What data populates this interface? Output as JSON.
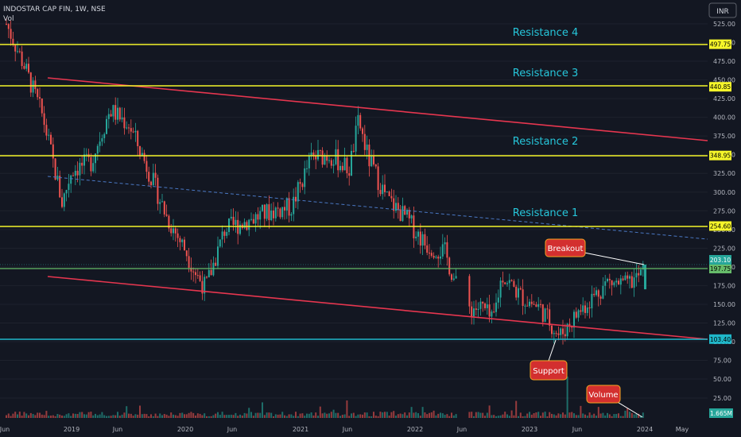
{
  "header": {
    "symbol": "INDOSTAR CAP FIN, 1W, NSE",
    "volume_label": "Vol"
  },
  "currency": "INR",
  "colors": {
    "bg": "#131722",
    "up": "#26a69a",
    "down": "#ef5350",
    "hline": "#f5f52a",
    "support_line": "#1fb7c9",
    "trend": "#e6364f",
    "breakout_line": "#66bb6a",
    "callout": "#d32f2f",
    "callout_border": "#f5a623",
    "text": "#b2b5be",
    "res_text": "#26c6da"
  },
  "annotations": {
    "resistance4": "Resistance 4",
    "resistance3": "Resistance 3",
    "resistance2": "Resistance 2",
    "resistance1": "Resistance 1",
    "breakout": "Breakout",
    "support": "Support",
    "volume": "Volume"
  },
  "chart_data": {
    "type": "candlestick",
    "y_range": [
      50,
      538
    ],
    "y_ticks": [
      "525.00",
      "500.00",
      "475.00",
      "450.00",
      "425.00",
      "400.00",
      "375.00",
      "350.00",
      "325.00",
      "300.00",
      "275.00",
      "250.00",
      "225.00",
      "200.00",
      "175.00",
      "150.00",
      "125.00",
      "100.00",
      "75.00",
      "50.00",
      "25.00"
    ],
    "x_ticks": [
      "Jun",
      "2019",
      "Jun",
      "2020",
      "Jun",
      "2021",
      "Jun",
      "2022",
      "Jun",
      "2023",
      "Jun",
      "2024",
      "May"
    ],
    "horizontal_levels": [
      {
        "name": "Resistance 4",
        "value": 497.75,
        "label": "497.75"
      },
      {
        "name": "Resistance 3",
        "value": 440.85,
        "label": "440.85"
      },
      {
        "name": "Resistance 2",
        "value": 348.95,
        "label": "348.95"
      },
      {
        "name": "Resistance 1",
        "value": 254.6,
        "label": "254.60"
      },
      {
        "name": "Breakout level",
        "value": 197.75,
        "label": "197.75"
      },
      {
        "name": "Support",
        "value": 103.4,
        "label": "103.40"
      }
    ],
    "last_price": {
      "value": 203.1,
      "label": "203.10"
    },
    "volume_last": "1.665M",
    "volume_axis_ticks": [
      "50.00",
      "25.00"
    ],
    "close_path": [
      [
        "2018-06",
        530
      ],
      [
        "2018-08",
        470
      ],
      [
        "2018-10",
        400
      ],
      [
        "2018-12",
        285
      ],
      [
        "2019-01",
        330
      ],
      [
        "2019-03",
        340
      ],
      [
        "2019-05",
        410
      ],
      [
        "2019-07",
        390
      ],
      [
        "2019-09",
        330
      ],
      [
        "2019-11",
        265
      ],
      [
        "2020-01",
        220
      ],
      [
        "2020-02",
        190
      ],
      [
        "2020-03",
        172
      ],
      [
        "2020-05",
        250
      ],
      [
        "2020-08",
        265
      ],
      [
        "2020-10",
        275
      ],
      [
        "2020-12",
        280
      ],
      [
        "2021-02",
        345
      ],
      [
        "2021-04",
        350
      ],
      [
        "2021-06",
        330
      ],
      [
        "2021-07",
        395
      ],
      [
        "2021-08",
        345
      ],
      [
        "2021-10",
        290
      ],
      [
        "2021-12",
        265
      ],
      [
        "2022-02",
        230
      ],
      [
        "2022-04",
        220
      ],
      [
        "2022-06",
        145
      ],
      [
        "2022-08",
        145
      ],
      [
        "2022-09",
        125
      ],
      [
        "2022-10",
        190
      ],
      [
        "2022-12",
        160
      ],
      [
        "2023-02",
        145
      ],
      [
        "2023-04",
        107
      ],
      [
        "2023-06",
        140
      ],
      [
        "2023-09",
        180
      ],
      [
        "2023-11",
        175
      ],
      [
        "2024-01",
        195
      ],
      [
        "2024-01",
        203
      ]
    ]
  }
}
